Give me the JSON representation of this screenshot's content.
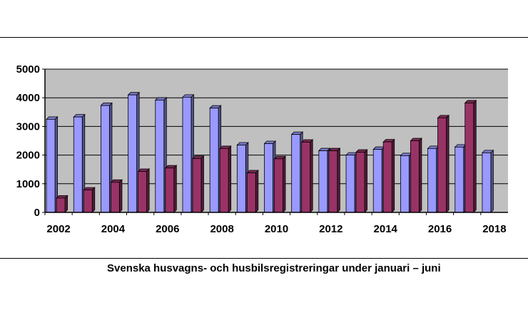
{
  "chart_data": {
    "type": "bar",
    "title": "",
    "xlabel": "",
    "ylabel": "",
    "categories": [
      "2002",
      "2003",
      "2004",
      "2005",
      "2006",
      "2007",
      "2008",
      "2009",
      "2010",
      "2011",
      "2012",
      "2013",
      "2014",
      "2015",
      "2016",
      "2017",
      "2018"
    ],
    "x_tick_labels": [
      "2002",
      "2004",
      "2006",
      "2008",
      "2010",
      "2012",
      "2014",
      "2016",
      "2018"
    ],
    "y_tick_labels": [
      "0",
      "1000",
      "2000",
      "3000",
      "4000",
      "5000"
    ],
    "ylim": [
      0,
      5000
    ],
    "grid": true,
    "legend": "none",
    "bar_style": "3d",
    "plot_background": "#c0c0c0",
    "series": [
      {
        "color": "#9999ff",
        "values": [
          3250,
          3330,
          3730,
          4100,
          3920,
          4020,
          3640,
          2350,
          2400,
          2720,
          2150,
          2000,
          2200,
          1980,
          2230,
          2280,
          2080
        ]
      },
      {
        "color": "#993366",
        "values": [
          500,
          780,
          1050,
          1430,
          1550,
          1880,
          2230,
          1380,
          1870,
          2450,
          2150,
          2100,
          2460,
          2500,
          3300,
          3820,
          null
        ]
      }
    ]
  },
  "caption": "Svenska husvagns- och husbilsregistreringar under januari – juni"
}
